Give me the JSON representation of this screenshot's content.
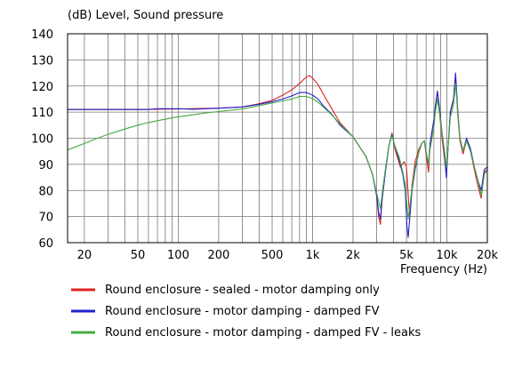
{
  "chart_data": {
    "type": "line",
    "title": "",
    "ylabel": "(dB)  Level, Sound pressure",
    "xlabel": "Frequency  (Hz)",
    "x_scale": "log",
    "xlim": [
      15,
      20000
    ],
    "ylim": [
      60,
      140
    ],
    "grid": true,
    "legend_position": "bottom",
    "y_ticks": [
      "140",
      "130",
      "120",
      "110",
      "100",
      "90",
      "80",
      "70",
      "60"
    ],
    "x_ticks": [
      {
        "f": 20,
        "label": "20"
      },
      {
        "f": 50,
        "label": "50"
      },
      {
        "f": 100,
        "label": "100"
      },
      {
        "f": 200,
        "label": "200"
      },
      {
        "f": 500,
        "label": "500"
      },
      {
        "f": 1000,
        "label": "1k"
      },
      {
        "f": 2000,
        "label": "2k"
      },
      {
        "f": 5000,
        "label": "5k"
      },
      {
        "f": 10000,
        "label": "10k"
      },
      {
        "f": 20000,
        "label": "20k"
      }
    ],
    "series": [
      {
        "name": "Round enclosure - sealed - motor damping only",
        "color": "#dd2222",
        "points": [
          [
            15,
            111
          ],
          [
            50,
            111
          ],
          [
            100,
            111.2
          ],
          [
            200,
            111.5
          ],
          [
            300,
            112
          ],
          [
            400,
            113.2
          ],
          [
            500,
            114.5
          ],
          [
            600,
            116.5
          ],
          [
            700,
            118.5
          ],
          [
            800,
            121
          ],
          [
            900,
            123.5
          ],
          [
            950,
            124
          ],
          [
            1000,
            123
          ],
          [
            1100,
            120.5
          ],
          [
            1200,
            117
          ],
          [
            1400,
            111
          ],
          [
            1600,
            106
          ],
          [
            2000,
            100.5
          ],
          [
            2500,
            93
          ],
          [
            2800,
            86
          ],
          [
            3000,
            78
          ],
          [
            3100,
            70
          ],
          [
            3200,
            67
          ],
          [
            3300,
            77
          ],
          [
            3500,
            88
          ],
          [
            3700,
            97
          ],
          [
            3900,
            102
          ],
          [
            4100,
            96
          ],
          [
            4500,
            89
          ],
          [
            4800,
            91
          ],
          [
            5000,
            89
          ],
          [
            5100,
            82
          ],
          [
            5200,
            75
          ],
          [
            5300,
            70
          ],
          [
            5500,
            82
          ],
          [
            5800,
            91
          ],
          [
            6200,
            96
          ],
          [
            6500,
            98
          ],
          [
            6800,
            99
          ],
          [
            7000,
            94
          ],
          [
            7300,
            87
          ],
          [
            7500,
            98
          ],
          [
            8000,
            107
          ],
          [
            8200,
            112
          ],
          [
            8500,
            118
          ],
          [
            8800,
            110
          ],
          [
            9200,
            100
          ],
          [
            9600,
            92
          ],
          [
            9900,
            86
          ],
          [
            10200,
            96
          ],
          [
            10600,
            110
          ],
          [
            11200,
            115
          ],
          [
            11600,
            124
          ],
          [
            12000,
            110
          ],
          [
            12500,
            99
          ],
          [
            13200,
            94
          ],
          [
            14000,
            99
          ],
          [
            15000,
            95
          ],
          [
            16000,
            88
          ],
          [
            17000,
            82
          ],
          [
            18000,
            77
          ],
          [
            19000,
            87
          ],
          [
            20000,
            88
          ]
        ]
      },
      {
        "name": "Round enclosure - motor damping - damped FV",
        "color": "#2222cc",
        "points": [
          [
            15,
            111
          ],
          [
            50,
            111
          ],
          [
            60,
            111
          ],
          [
            70,
            111.3
          ],
          [
            100,
            111.3
          ],
          [
            130,
            111.1
          ],
          [
            200,
            111.5
          ],
          [
            300,
            112
          ],
          [
            400,
            113
          ],
          [
            500,
            114
          ],
          [
            600,
            115
          ],
          [
            700,
            116.2
          ],
          [
            800,
            117.5
          ],
          [
            900,
            117.5
          ],
          [
            1000,
            116.5
          ],
          [
            1100,
            115
          ],
          [
            1200,
            112.5
          ],
          [
            1400,
            109
          ],
          [
            1600,
            105
          ],
          [
            2000,
            100.5
          ],
          [
            2500,
            93
          ],
          [
            2800,
            86
          ],
          [
            3000,
            78
          ],
          [
            3100,
            72
          ],
          [
            3200,
            69
          ],
          [
            3300,
            77
          ],
          [
            3500,
            88
          ],
          [
            3700,
            97
          ],
          [
            3900,
            101.5
          ],
          [
            4100,
            97
          ],
          [
            4400,
            92
          ],
          [
            4700,
            86
          ],
          [
            4900,
            80
          ],
          [
            5050,
            66
          ],
          [
            5150,
            62
          ],
          [
            5300,
            70
          ],
          [
            5500,
            80
          ],
          [
            5800,
            88
          ],
          [
            6200,
            95
          ],
          [
            6500,
            98
          ],
          [
            6800,
            99
          ],
          [
            7000,
            95
          ],
          [
            7300,
            90
          ],
          [
            7500,
            98
          ],
          [
            8000,
            107
          ],
          [
            8200,
            112
          ],
          [
            8500,
            118
          ],
          [
            8800,
            112
          ],
          [
            9200,
            102
          ],
          [
            9600,
            94
          ],
          [
            9900,
            85
          ],
          [
            10200,
            96
          ],
          [
            10600,
            110
          ],
          [
            11200,
            115
          ],
          [
            11600,
            125
          ],
          [
            12000,
            112
          ],
          [
            12500,
            100
          ],
          [
            13200,
            95
          ],
          [
            14000,
            100
          ],
          [
            15000,
            96
          ],
          [
            16000,
            89
          ],
          [
            17000,
            84
          ],
          [
            18000,
            80
          ],
          [
            19000,
            88
          ],
          [
            20000,
            89
          ]
        ]
      },
      {
        "name": "Round enclosure - motor damping - damped FV - leaks",
        "color": "#44aa44",
        "points": [
          [
            15,
            95.5
          ],
          [
            20,
            98
          ],
          [
            25,
            100
          ],
          [
            30,
            101.5
          ],
          [
            40,
            103.5
          ],
          [
            50,
            105
          ],
          [
            60,
            106
          ],
          [
            70,
            106.7
          ],
          [
            80,
            107.3
          ],
          [
            100,
            108.2
          ],
          [
            130,
            109
          ],
          [
            160,
            109.7
          ],
          [
            200,
            110.2
          ],
          [
            300,
            111.2
          ],
          [
            400,
            112.5
          ],
          [
            500,
            113.5
          ],
          [
            600,
            114.3
          ],
          [
            700,
            115
          ],
          [
            800,
            116
          ],
          [
            900,
            116
          ],
          [
            1000,
            115.2
          ],
          [
            1100,
            113.8
          ],
          [
            1200,
            112
          ],
          [
            1400,
            108.8
          ],
          [
            1600,
            105.5
          ],
          [
            2000,
            100.5
          ],
          [
            2500,
            93
          ],
          [
            2800,
            86
          ],
          [
            3000,
            79
          ],
          [
            3100,
            76
          ],
          [
            3200,
            73
          ],
          [
            3300,
            79
          ],
          [
            3500,
            89
          ],
          [
            3700,
            97
          ],
          [
            3900,
            101
          ],
          [
            4100,
            97
          ],
          [
            4400,
            93
          ],
          [
            4700,
            87
          ],
          [
            4900,
            82
          ],
          [
            5050,
            74
          ],
          [
            5150,
            69
          ],
          [
            5300,
            74
          ],
          [
            5500,
            81
          ],
          [
            5800,
            89
          ],
          [
            6200,
            95
          ],
          [
            6500,
            98
          ],
          [
            6800,
            99
          ],
          [
            7000,
            95
          ],
          [
            7300,
            90
          ],
          [
            7500,
            96
          ],
          [
            8000,
            104
          ],
          [
            8200,
            110
          ],
          [
            8500,
            115
          ],
          [
            8800,
            110
          ],
          [
            9200,
            102
          ],
          [
            9600,
            95
          ],
          [
            9900,
            89
          ],
          [
            10200,
            96
          ],
          [
            10600,
            108
          ],
          [
            11200,
            113
          ],
          [
            11600,
            121
          ],
          [
            12000,
            111
          ],
          [
            12500,
            100
          ],
          [
            13200,
            95
          ],
          [
            14000,
            99
          ],
          [
            15000,
            95
          ],
          [
            16000,
            89
          ],
          [
            17000,
            84
          ],
          [
            18000,
            78
          ],
          [
            19000,
            86
          ],
          [
            20000,
            88
          ]
        ]
      }
    ]
  }
}
